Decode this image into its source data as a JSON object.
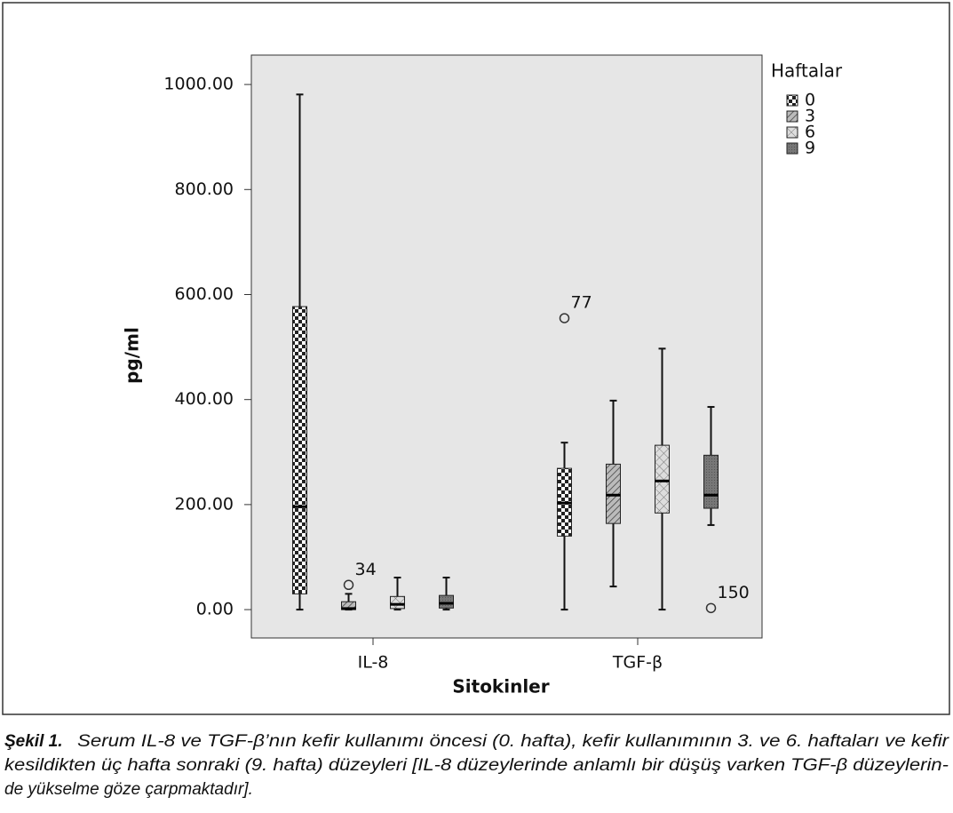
{
  "chart_data": {
    "type": "box",
    "x_label": "Sitokinler",
    "y_label": "pg/ml",
    "legend_title": "Haftalar",
    "legend": "right",
    "categories": [
      "IL-8",
      "TGF-β"
    ],
    "ylim": [
      -54,
      1056
    ],
    "yticks": [
      {
        "value": 0,
        "label": "0.00"
      },
      {
        "value": 200,
        "label": "200.00"
      },
      {
        "value": 400,
        "label": "400.00"
      },
      {
        "value": 600,
        "label": "600.00"
      },
      {
        "value": 800,
        "label": "800.00"
      },
      {
        "value": 1000,
        "label": "1000.00"
      }
    ],
    "series": [
      {
        "name": "0",
        "pattern": "checker",
        "values": [
          {
            "min": 0,
            "q1": 30,
            "median": 196,
            "q3": 577,
            "max": 981
          },
          {
            "min": 0,
            "q1": 140,
            "median": 203,
            "q3": 269,
            "max": 318
          }
        ],
        "outliers": [
          [],
          [
            {
              "value": 555,
              "label": "77"
            }
          ]
        ]
      },
      {
        "name": "3",
        "pattern": "hatch",
        "values": [
          {
            "min": 0,
            "q1": 0,
            "median": 2,
            "q3": 15,
            "max": 30
          },
          {
            "min": 44,
            "q1": 164,
            "median": 218,
            "q3": 277,
            "max": 398
          }
        ],
        "outliers": [
          [
            {
              "value": 47,
              "label": "34"
            }
          ],
          []
        ]
      },
      {
        "name": "6",
        "pattern": "cross",
        "values": [
          {
            "min": 0,
            "q1": 2,
            "median": 10,
            "q3": 25,
            "max": 61
          },
          {
            "min": 0,
            "q1": 184,
            "median": 245,
            "q3": 313,
            "max": 497
          }
        ],
        "outliers": [
          [],
          []
        ]
      },
      {
        "name": "9",
        "pattern": "dark",
        "values": [
          {
            "min": 0,
            "q1": 3,
            "median": 12,
            "q3": 27,
            "max": 61
          },
          {
            "min": 161,
            "q1": 193,
            "median": 218,
            "q3": 294,
            "max": 386
          }
        ],
        "outliers": [
          [],
          [
            {
              "value": 3,
              "label": "150"
            }
          ]
        ]
      }
    ]
  },
  "caption": {
    "label": "Şekil 1.",
    "lines": [
      "Serum IL-8 ve TGF-β’nın kefir kullanımı öncesi (0. hafta), kefir kullanımının 3. ve 6. haftaları ve kefir",
      "kesildikten üç hafta sonraki (9. hafta) düzeyleri [IL-8 düzeylerinde anlamlı bir düşüş varken TGF-β düzeylerin-",
      "de yükselme göze çarpmaktadır]."
    ]
  }
}
